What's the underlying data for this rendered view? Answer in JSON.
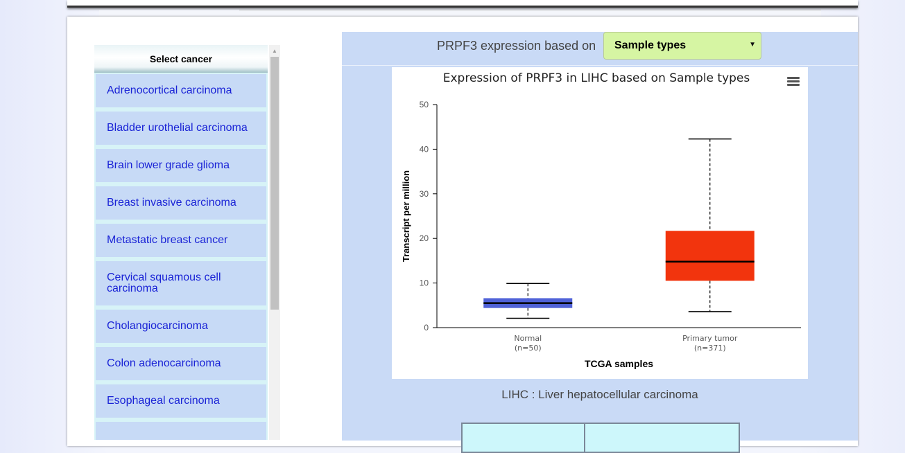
{
  "gene_selector": {
    "label": "PRPF3 expression based on",
    "selected": "Sample types"
  },
  "cancer_list": {
    "header": "Select cancer",
    "items": [
      {
        "label": "Adrenocortical carcinoma"
      },
      {
        "label": "Bladder urothelial carcinoma"
      },
      {
        "label": "Brain lower grade glioma"
      },
      {
        "label": "Breast invasive carcinoma"
      },
      {
        "label": "Metastatic breast cancer"
      },
      {
        "label": "Cervical squamous cell carcinoma"
      },
      {
        "label": "Cholangiocarcinoma"
      },
      {
        "label": "Colon adenocarcinoma"
      },
      {
        "label": "Esophageal carcinoma"
      },
      {
        "label": ""
      }
    ]
  },
  "chart_menu_icon": "hamburger-menu-icon",
  "caption": "LIHC : Liver hepatocellular carcinoma",
  "chart_data": {
    "type": "boxplot",
    "title": "Expression of PRPF3 in LIHC based on Sample types",
    "xlabel": "TCGA samples",
    "ylabel": "Transcript per million",
    "ylim": [
      0,
      50
    ],
    "yticks": [
      0,
      10,
      20,
      30,
      40,
      50
    ],
    "grid": false,
    "categories": [
      {
        "name": "Normal",
        "n_label": "(n=50)",
        "min": 2.1,
        "q1": 4.4,
        "median": 5.5,
        "q3": 6.6,
        "max": 9.9,
        "color": "#5062d8"
      },
      {
        "name": "Primary tumor",
        "n_label": "(n=371)",
        "min": 3.6,
        "q1": 10.5,
        "median": 14.8,
        "q3": 21.7,
        "max": 42.3,
        "color": "#f2340d"
      }
    ]
  }
}
